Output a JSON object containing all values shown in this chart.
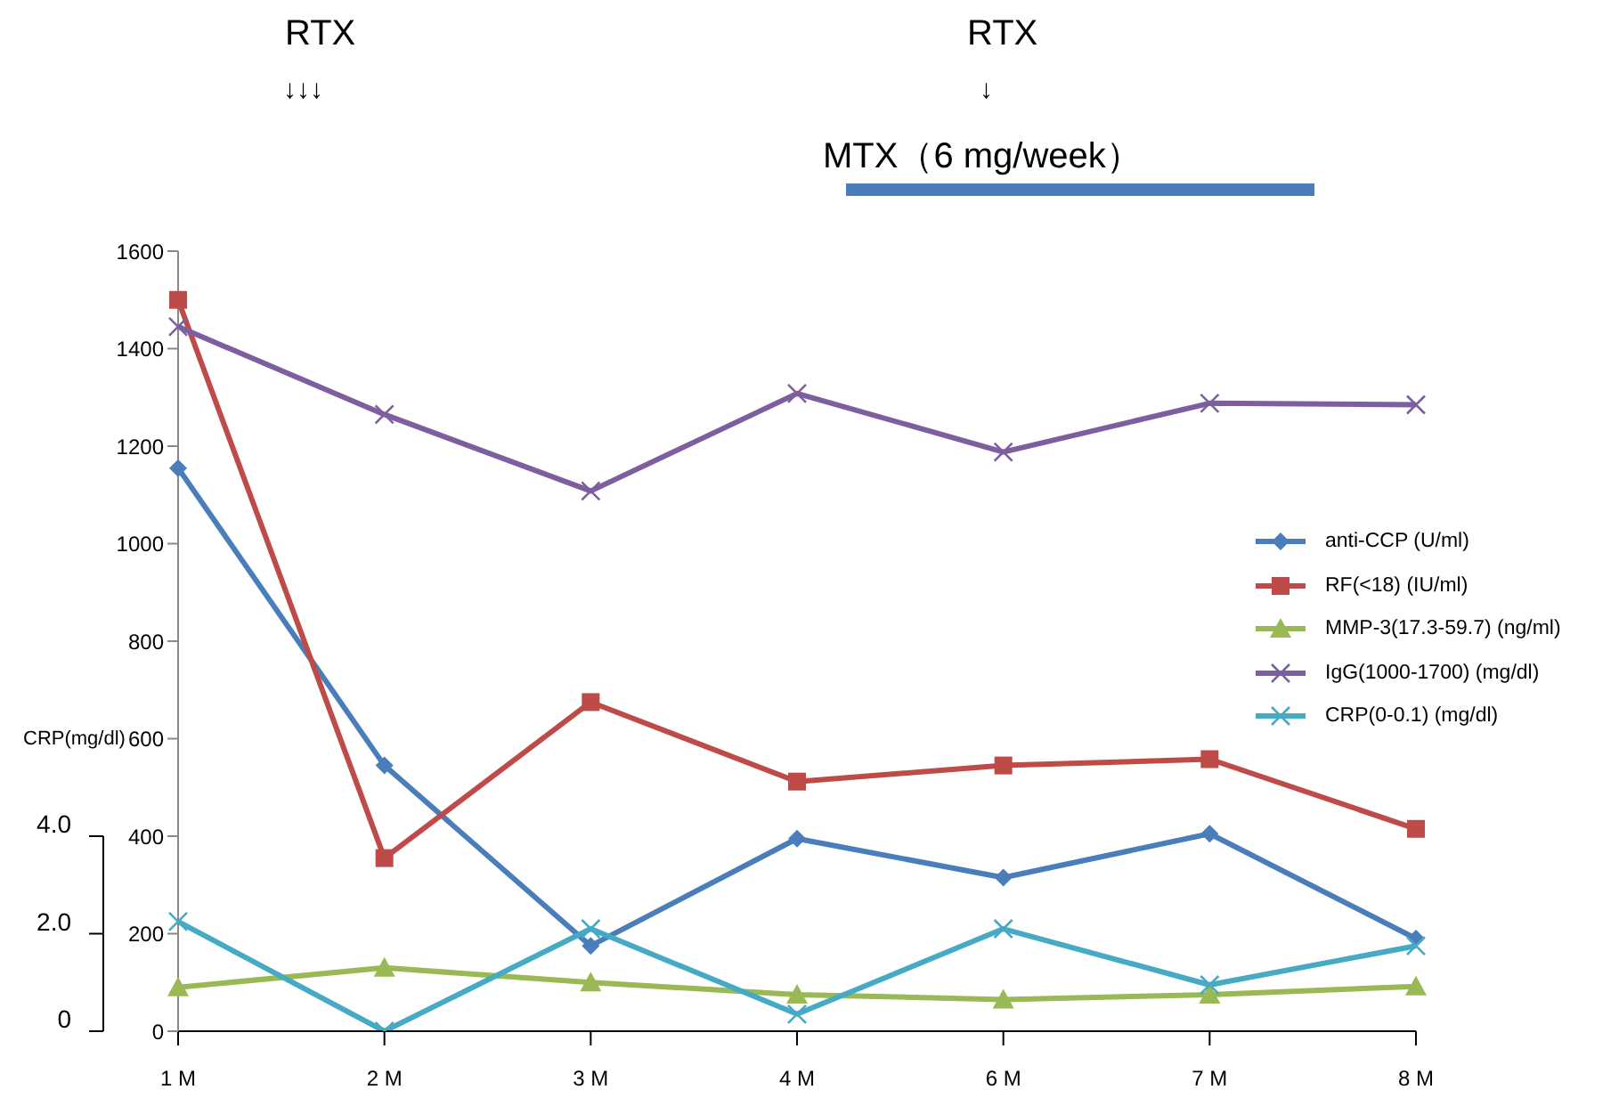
{
  "chart_data": {
    "type": "line",
    "categories": [
      "1 M",
      "2 M",
      "3 M",
      "4 M",
      "6 M",
      "7 M",
      "8 M"
    ],
    "series": [
      {
        "name": "anti-CCP (U/ml)",
        "color": "#4a7ebb",
        "marker": "diamond",
        "values": [
          1155,
          545,
          175,
          395,
          315,
          405,
          190
        ]
      },
      {
        "name": "RF(<18) (IU/ml)",
        "color": "#be4b48",
        "marker": "square",
        "values": [
          1500,
          355,
          675,
          512,
          545,
          558,
          415
        ]
      },
      {
        "name": "MMP-3(17.3-59.7) (ng/ml)",
        "color": "#98b954",
        "marker": "triangle",
        "values": [
          90,
          130,
          100,
          75,
          65,
          75,
          92
        ]
      },
      {
        "name": "IgG(1000-1700) (mg/dl)",
        "color": "#7d5fa0",
        "marker": "cross",
        "values": [
          1445,
          1265,
          1108,
          1308,
          1188,
          1288,
          1285
        ]
      },
      {
        "name": "CRP(0-0.1) (mg/dl)",
        "color": "#46aac5",
        "marker": "cross",
        "axis": "y2",
        "values": [
          2.25,
          0,
          2.1,
          0.35,
          2.1,
          0.95,
          1.75
        ]
      }
    ],
    "ylim": [
      0,
      1600
    ],
    "yticks": [
      0,
      200,
      400,
      600,
      800,
      1000,
      1200,
      1400,
      1600
    ],
    "y2lim": [
      0,
      16
    ],
    "y2ticks": [
      0,
      {
        "value": 2,
        "label": "2.0"
      },
      {
        "value": 4,
        "label": "4.0"
      }
    ],
    "y2label": "CRP(mg/dl)",
    "legend": "right",
    "annotations": [
      "RTX",
      "↓↓↓",
      "RTX",
      "↓",
      "MTX（6 mg/week）"
    ]
  }
}
